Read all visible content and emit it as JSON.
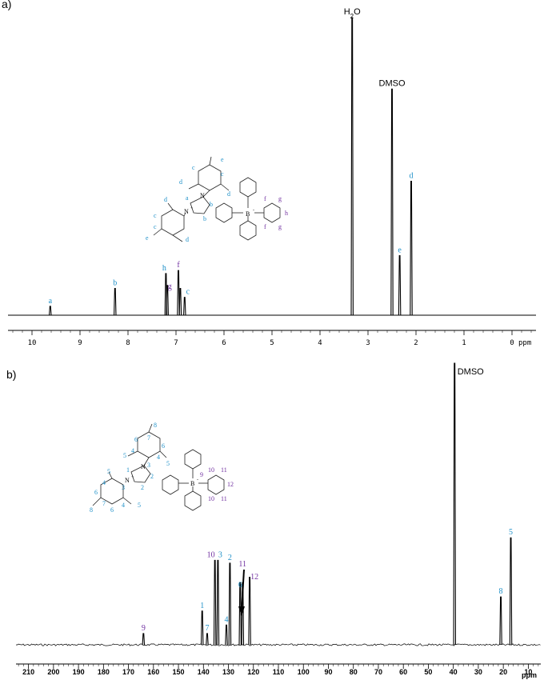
{
  "chart_data": [
    {
      "type": "line",
      "panel_label": "a)",
      "x_unit": "ppm",
      "xlim": [
        10.5,
        -0.5
      ],
      "x_ticks": [
        10,
        9,
        8,
        7,
        6,
        5,
        4,
        3,
        2,
        1,
        0
      ],
      "peaks": [
        {
          "ppm": 9.62,
          "height": 0.03,
          "label": "a",
          "label_color": "cyan"
        },
        {
          "ppm": 8.27,
          "height": 0.09,
          "label": "b",
          "label_color": "cyan"
        },
        {
          "ppm": 7.21,
          "height": 0.14,
          "label": "h",
          "label_color": "cyan"
        },
        {
          "ppm": 7.18,
          "height": 0.1,
          "label": "g",
          "label_color": "purple"
        },
        {
          "ppm": 6.95,
          "height": 0.15,
          "label": "f",
          "label_color": "purple"
        },
        {
          "ppm": 6.91,
          "height": 0.09,
          "label": "",
          "label_color": "cyan"
        },
        {
          "ppm": 6.82,
          "height": 0.06,
          "label": "c",
          "label_color": "cyan"
        },
        {
          "ppm": 3.33,
          "height": 1.0,
          "label": "H2O",
          "label_color": "black"
        },
        {
          "ppm": 2.5,
          "height": 0.76,
          "label": "DMSO",
          "label_color": "black"
        },
        {
          "ppm": 2.34,
          "height": 0.2,
          "label": "e",
          "label_color": "cyan"
        },
        {
          "ppm": 2.1,
          "height": 0.45,
          "label": "d",
          "label_color": "cyan"
        }
      ]
    },
    {
      "type": "line",
      "panel_label": "b)",
      "x_unit": "ppm",
      "xlim": [
        215,
        5
      ],
      "x_ticks": [
        210,
        200,
        190,
        180,
        170,
        160,
        150,
        140,
        130,
        120,
        110,
        100,
        90,
        80,
        70,
        60,
        50,
        40,
        30,
        20,
        10
      ],
      "peaks": [
        {
          "ppm": 164.0,
          "height": 0.04,
          "label": "9",
          "label_color": "purple"
        },
        {
          "ppm": 140.5,
          "height": 0.12,
          "label": "1",
          "label_color": "cyan"
        },
        {
          "ppm": 138.5,
          "height": 0.04,
          "label": "7",
          "label_color": "cyan"
        },
        {
          "ppm": 135.4,
          "height": 0.3,
          "label": "10",
          "label_color": "purple"
        },
        {
          "ppm": 134.2,
          "height": 0.3,
          "label": "3",
          "label_color": "cyan"
        },
        {
          "ppm": 130.8,
          "height": 0.07,
          "label": "4",
          "label_color": "cyan"
        },
        {
          "ppm": 129.4,
          "height": 0.29,
          "label": "2",
          "label_color": "cyan"
        },
        {
          "ppm": 125.3,
          "height": 0.22,
          "label": "11",
          "label_color": "purple"
        },
        {
          "ppm": 124.3,
          "height": 0.22,
          "label": "6",
          "label_color": "cyan"
        },
        {
          "ppm": 121.5,
          "height": 0.24,
          "label": "12",
          "label_color": "purple"
        },
        {
          "ppm": 39.5,
          "height": 1.0,
          "label": "DMSO",
          "label_color": "black"
        },
        {
          "ppm": 21.0,
          "height": 0.17,
          "label": "8",
          "label_color": "cyan"
        },
        {
          "ppm": 17.0,
          "height": 0.38,
          "label": "5",
          "label_color": "cyan"
        }
      ]
    }
  ],
  "colors": {
    "cyan": "#1e90c8",
    "purple": "#7030a0",
    "black": "#000000"
  }
}
